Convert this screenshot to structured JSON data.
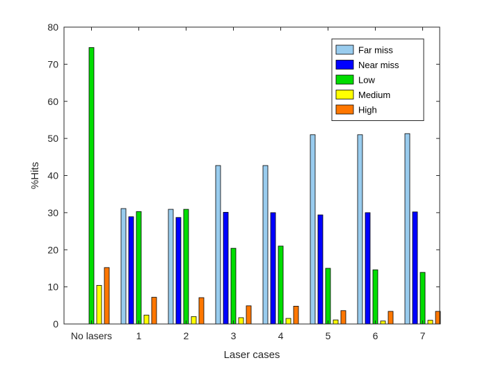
{
  "chart_data": {
    "type": "bar",
    "title": "",
    "xlabel": "Laser cases",
    "ylabel": "%Hits",
    "ylim": [
      0,
      80
    ],
    "yticks": [
      0,
      10,
      20,
      30,
      40,
      50,
      60,
      70,
      80
    ],
    "grid": false,
    "legend_position": "top-right",
    "categories": [
      "No lasers",
      "1",
      "2",
      "3",
      "4",
      "5",
      "6",
      "7"
    ],
    "series": [
      {
        "name": "Far miss",
        "color": "#99ccee",
        "values": [
          0,
          31.1,
          30.9,
          42.7,
          42.7,
          51.0,
          51.0,
          51.3
        ]
      },
      {
        "name": "Near miss",
        "color": "#0000ff",
        "values": [
          0,
          28.9,
          28.7,
          30.1,
          30.0,
          29.4,
          30.0,
          30.2
        ]
      },
      {
        "name": "Low",
        "color": "#00dd00",
        "values": [
          74.5,
          30.3,
          30.9,
          20.4,
          21.0,
          15.0,
          14.6,
          13.9
        ]
      },
      {
        "name": "Medium",
        "color": "#ffff00",
        "values": [
          10.4,
          2.4,
          2.0,
          1.7,
          1.5,
          1.1,
          0.8,
          1.0
        ]
      },
      {
        "name": "High",
        "color": "#ff7700",
        "values": [
          15.2,
          7.2,
          7.1,
          4.9,
          4.8,
          3.6,
          3.4,
          3.4
        ]
      }
    ]
  }
}
